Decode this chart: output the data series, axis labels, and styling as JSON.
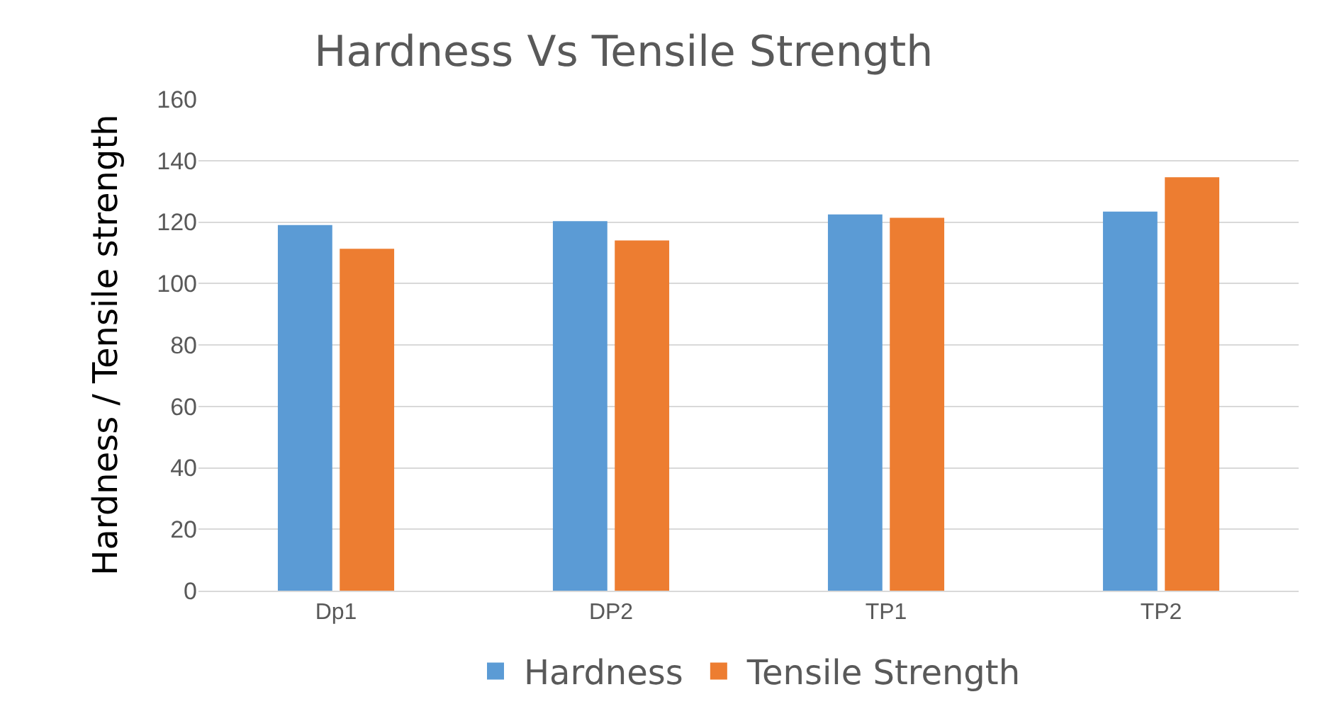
{
  "chart_data": {
    "type": "bar",
    "title": "Hardness Vs Tensile Strength",
    "ylabel": "Hardness / Tensile strength",
    "categories": [
      "Dp1",
      "DP2",
      "TP1",
      "TP2"
    ],
    "series": [
      {
        "name": "Hardness",
        "color": "#5b9bd5",
        "values": [
          119,
          120.3,
          122.5,
          123.4
        ]
      },
      {
        "name": "Tensile Strength",
        "color": "#ed7d31",
        "values": [
          111.3,
          114,
          121.4,
          134.6
        ]
      }
    ],
    "ylim": [
      0,
      160
    ],
    "yticks": [
      0,
      20,
      40,
      60,
      80,
      100,
      120,
      140,
      160
    ],
    "grid": "y",
    "legend": "bottom"
  }
}
